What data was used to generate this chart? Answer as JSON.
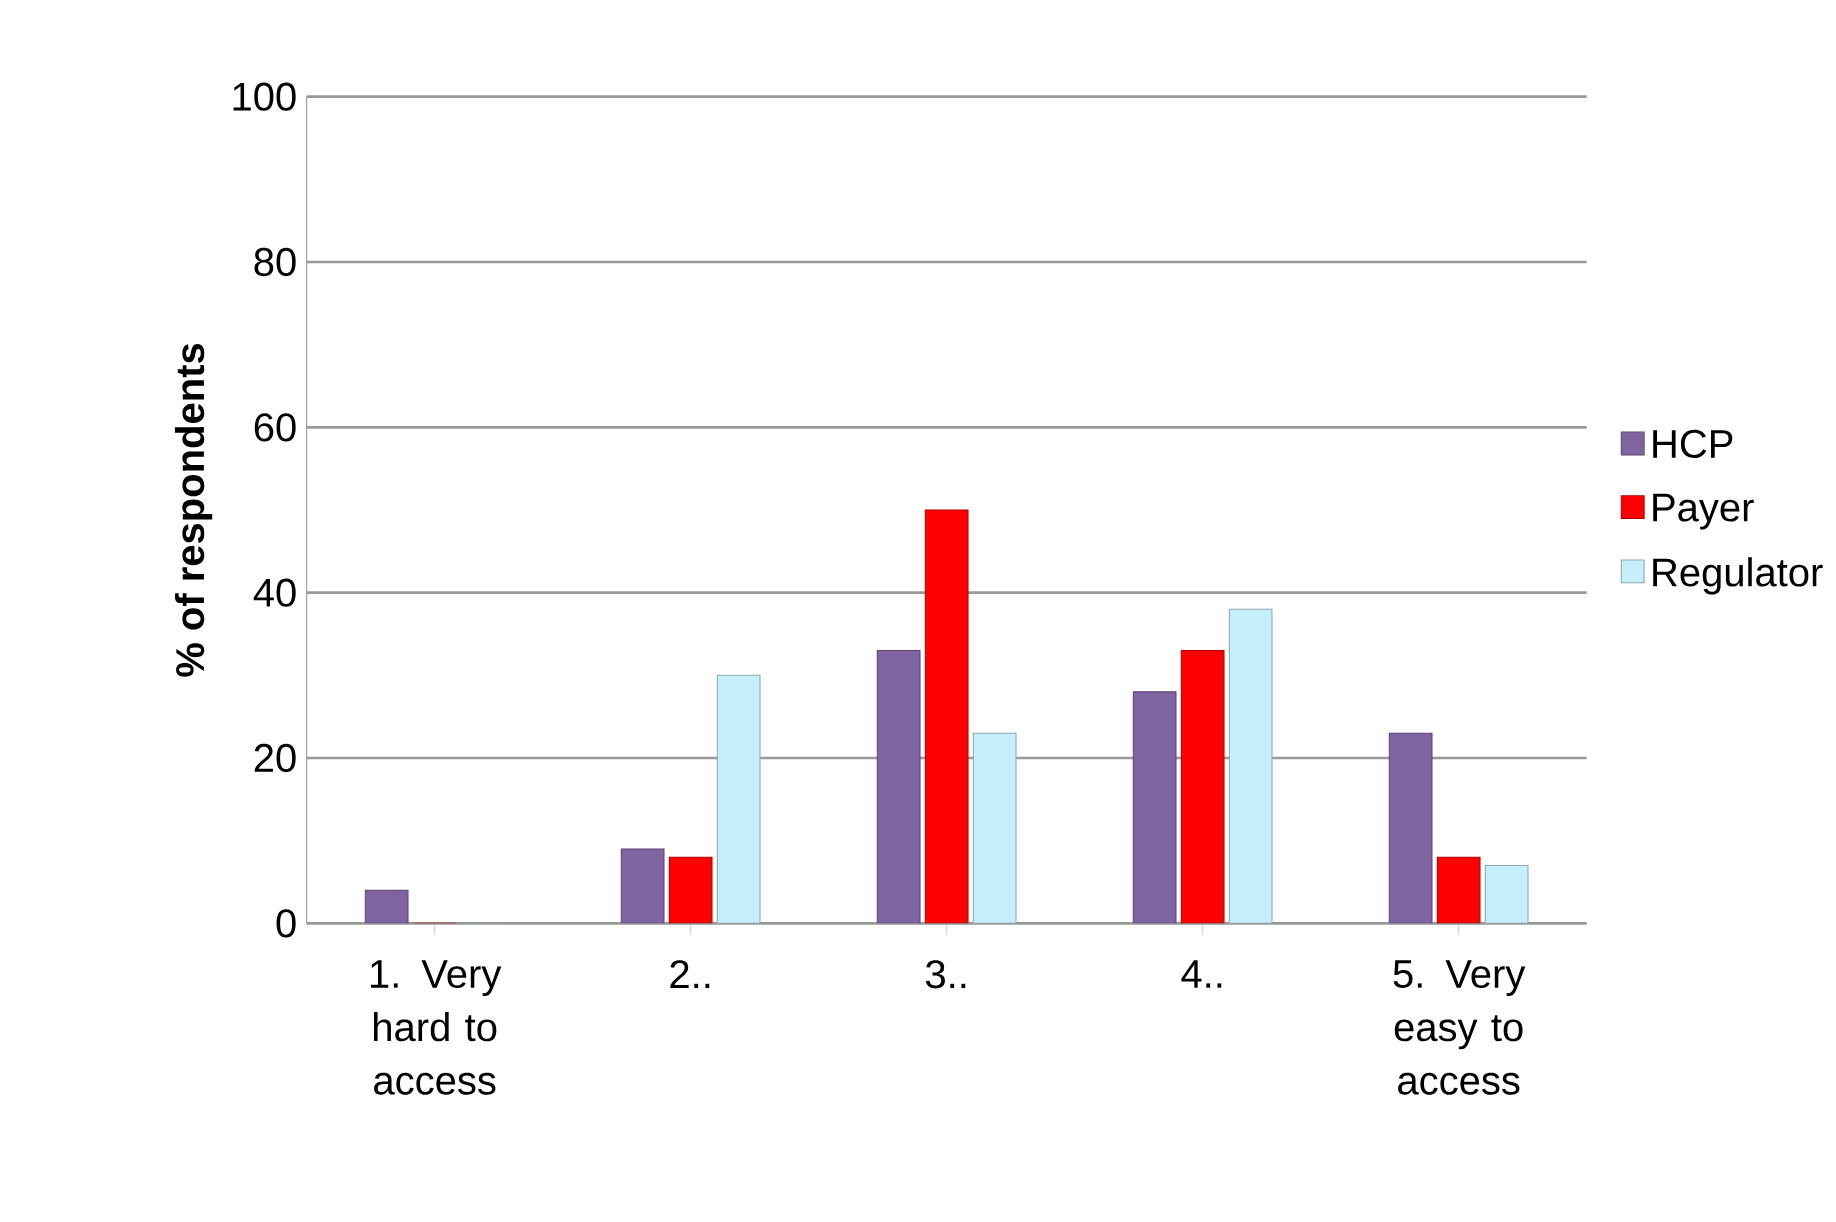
{
  "chart_data": {
    "type": "bar",
    "ylabel": "% of respondents",
    "categories": [
      "1. Very hard to access",
      "2..",
      "3..",
      "4..",
      "5. Very easy to access"
    ],
    "series": [
      {
        "name": "HCP",
        "color": "#8064a2",
        "values": [
          4,
          9,
          33,
          28,
          23
        ]
      },
      {
        "name": "Payer",
        "color": "#ff0000",
        "values": [
          0,
          8,
          50,
          33,
          8
        ]
      },
      {
        "name": "Regulator",
        "color": "#c6effc",
        "values": [
          0,
          30,
          23,
          38,
          7
        ]
      }
    ],
    "ylim": [
      0,
      100
    ],
    "yticks": [
      0,
      20,
      40,
      60,
      80,
      100
    ],
    "grid": "y",
    "legend": "right"
  }
}
